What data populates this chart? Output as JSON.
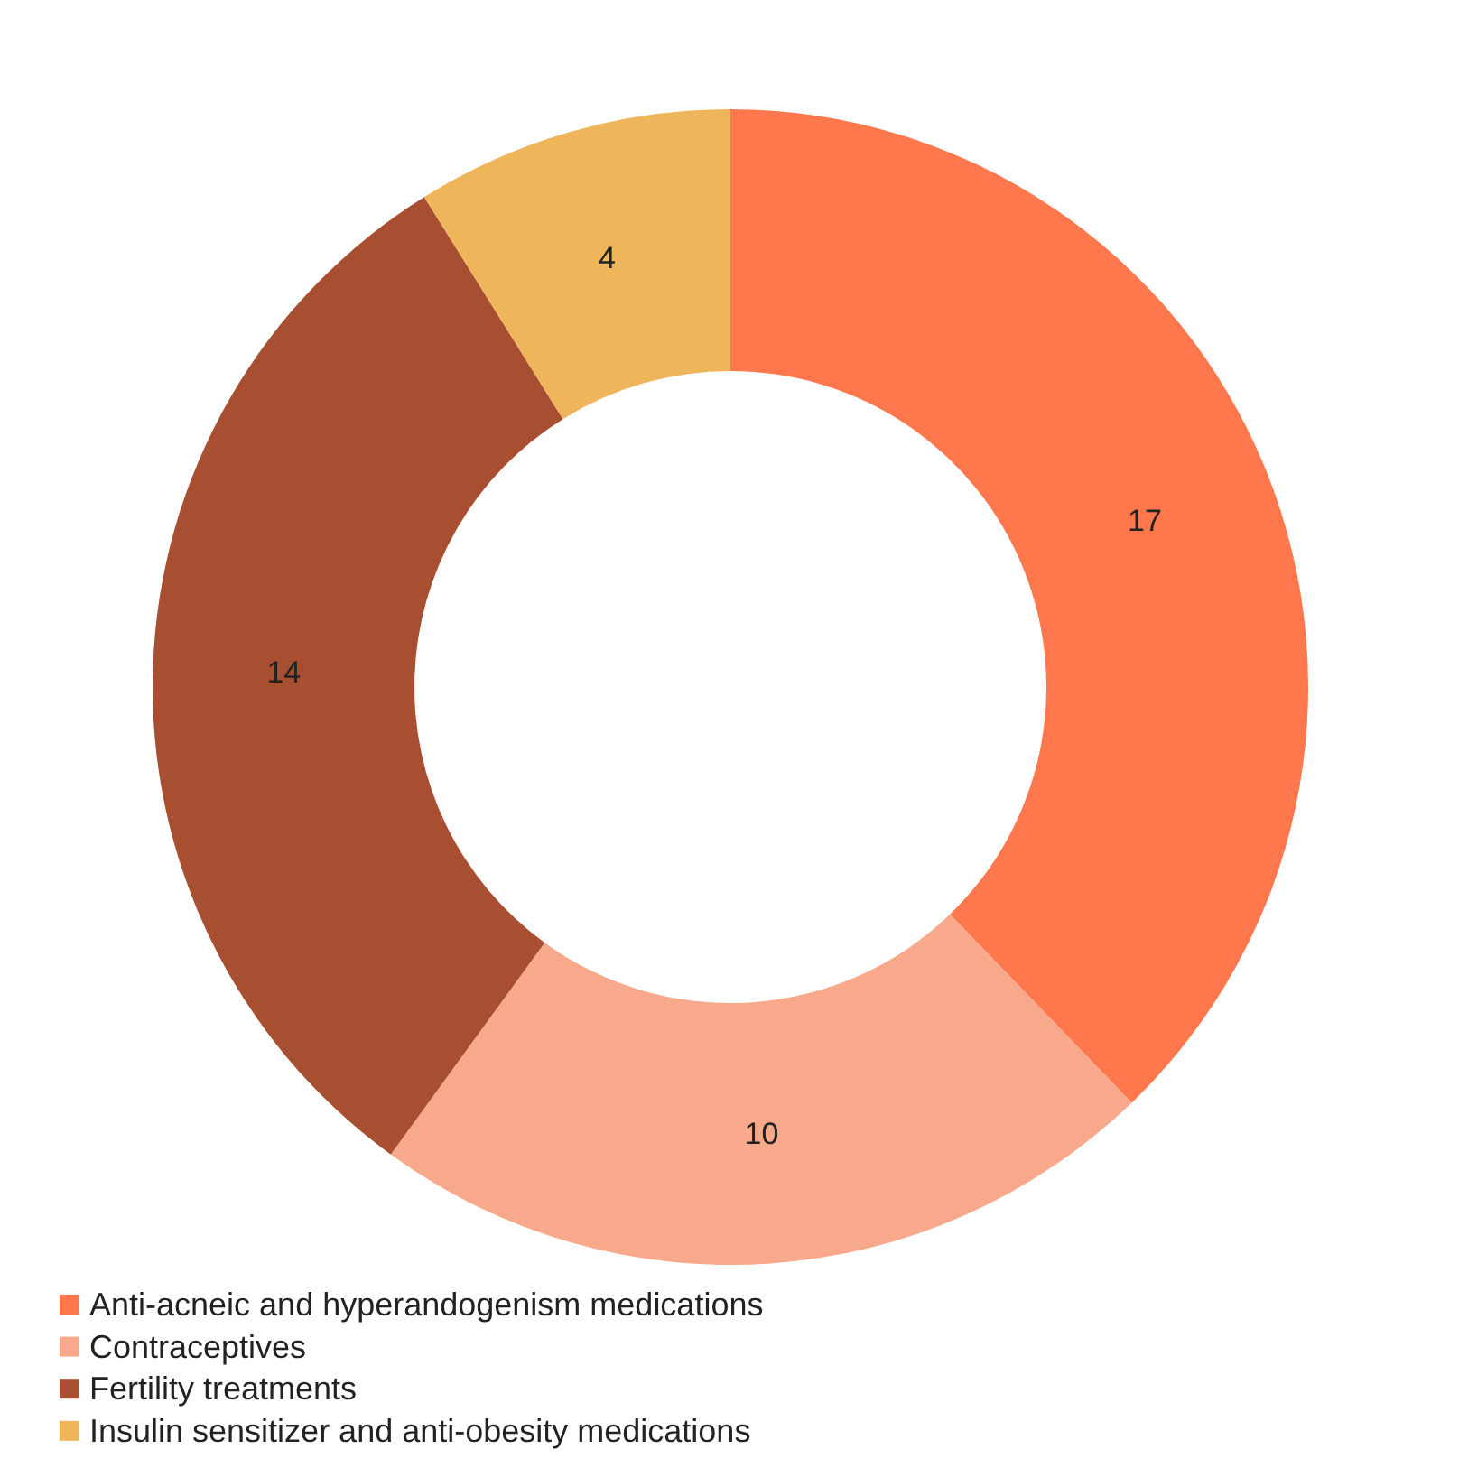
{
  "chart_data": {
    "type": "donut",
    "categories": [
      "Anti-acneic and hyperandogenism medications",
      "Contraceptives",
      "Fertility treatments",
      "Insulin sensitizer and anti-obesity medications"
    ],
    "values": [
      17,
      10,
      14,
      4
    ],
    "colors": [
      "#ff774c",
      "#f8a98c",
      "#a94f31",
      "#efb55a"
    ],
    "data_labels": true,
    "legend": "bottom left"
  }
}
